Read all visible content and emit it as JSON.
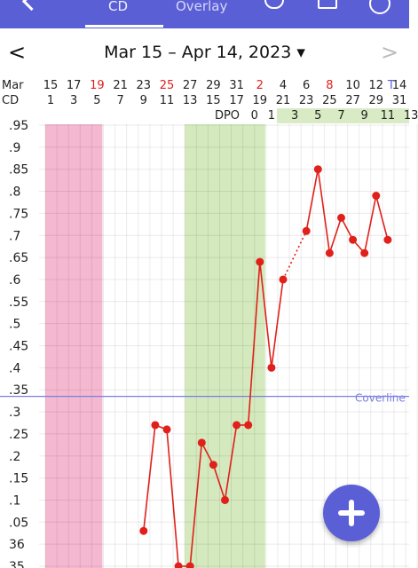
{
  "topbar": {
    "tab_left": "CD",
    "tab_right": "Overlay"
  },
  "nav": {
    "prev": "<",
    "date_range": "Mar 15 – Apr 14, 2023 ▾",
    "next": ">"
  },
  "header": {
    "month_label": "Mar",
    "cd_label": "CD",
    "dpo_label": "DPO",
    "dates": [
      "15",
      "17",
      "19",
      "21",
      "23",
      "25",
      "27",
      "29",
      "31",
      "2",
      "4",
      "6",
      "8",
      "10",
      "12",
      "14"
    ],
    "red_dates": [
      "19",
      "25",
      "2",
      "8"
    ],
    "today_marker": "T",
    "cd": [
      "1",
      "3",
      "5",
      "7",
      "9",
      "11",
      "13",
      "15",
      "17",
      "19",
      "21",
      "23",
      "25",
      "27",
      "29",
      "31"
    ],
    "dpo": [
      "0",
      "1",
      "3",
      "5",
      "7",
      "9",
      "11",
      "13"
    ]
  },
  "chart_data": {
    "type": "line",
    "y_labels": [
      ".95",
      ".9",
      ".85",
      ".8",
      ".75",
      ".7",
      ".65",
      ".6",
      ".55",
      ".5",
      ".45",
      ".4",
      ".35",
      ".3",
      ".25",
      ".2",
      ".15",
      ".1",
      ".05",
      "36",
      "35"
    ],
    "coverline": {
      "label": "Coverline",
      "value": 0.335
    },
    "fertile_window_days": [
      1,
      5
    ],
    "luteal_shading_days": [
      13,
      19
    ],
    "temperatures": [
      {
        "cd": 9,
        "temp": 36.03
      },
      {
        "cd": 10,
        "temp": 0.27
      },
      {
        "cd": 11,
        "temp": 0.26
      },
      {
        "cd": 12,
        "temp": 35.95
      },
      {
        "cd": 13,
        "temp": 35.95
      },
      {
        "cd": 14,
        "temp": 0.23
      },
      {
        "cd": 15,
        "temp": 0.18
      },
      {
        "cd": 16,
        "temp": 0.1
      },
      {
        "cd": 17,
        "temp": 0.27
      },
      {
        "cd": 18,
        "temp": 0.27
      },
      {
        "cd": 19,
        "temp": 0.64
      },
      {
        "cd": 20,
        "temp": 0.4
      },
      {
        "cd": 21,
        "temp": 0.6
      },
      {
        "cd": 23,
        "temp": 0.71
      },
      {
        "cd": 24,
        "temp": 0.85
      },
      {
        "cd": 25,
        "temp": 0.66
      },
      {
        "cd": 26,
        "temp": 0.74
      },
      {
        "cd": 27,
        "temp": 0.69
      },
      {
        "cd": 28,
        "temp": 0.66
      },
      {
        "cd": 29,
        "temp": 0.79
      },
      {
        "cd": 30,
        "temp": 0.69
      }
    ],
    "dashed_segment": [
      21,
      23
    ]
  },
  "fab": {
    "label": "+"
  },
  "colors": {
    "brand": "#5b5fd6",
    "fertile": "#f4b8d0",
    "luteal": "#d4e9bd",
    "line": "#e0201b",
    "coverline": "#7b7fe0"
  }
}
